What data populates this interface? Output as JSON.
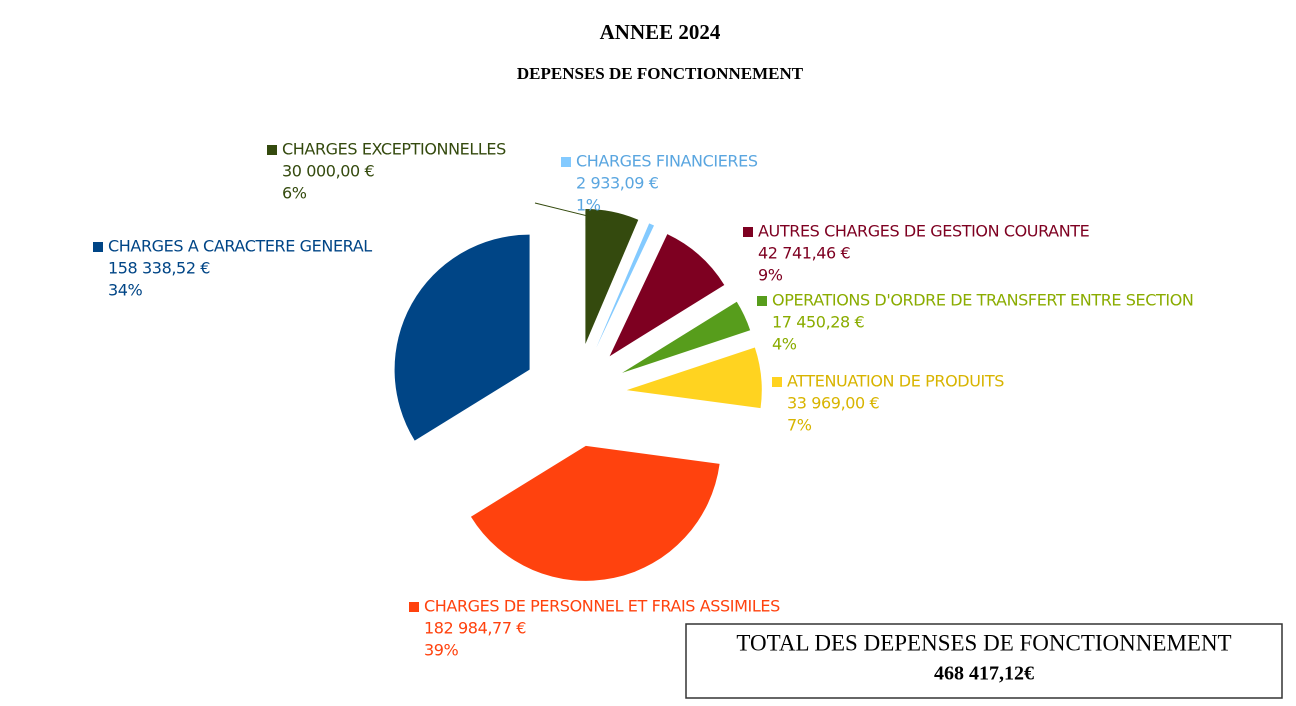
{
  "chart_data": {
    "type": "pie",
    "title": "ANNEE 2024",
    "subtitle": "DEPENSES DE FONCTIONNEMENT",
    "categories": [
      "CHARGES EXCEPTIONNELLES",
      "CHARGES FINANCIERES",
      "AUTRES CHARGES DE GESTION COURANTE",
      "OPERATIONS D'ORDRE DE TRANSFERT ENTRE SECTION",
      "ATTENUATION DE PRODUITS",
      "CHARGES DE PERSONNEL ET FRAIS ASSIMILES",
      "CHARGES A CARACTERE GENERAL"
    ],
    "values": [
      30000.0,
      2933.09,
      42741.46,
      17450.28,
      33969.0,
      182984.77,
      158338.52
    ],
    "value_labels": [
      "30 000,00 €",
      "2 933,09 €",
      "42 741,46 €",
      "17 450,28 €",
      "33 969,00 €",
      "182 984,77 €",
      "158 338,52 €"
    ],
    "percent_labels": [
      "6%",
      "1%",
      "9%",
      "4%",
      "7%",
      "39%",
      "34%"
    ],
    "colors": [
      "#344a0e",
      "#83caff",
      "#7e0021",
      "#579d1c",
      "#ffd320",
      "#ff420e",
      "#004586"
    ],
    "label_colors": [
      "#344a0e",
      "#5aa6e0",
      "#7e0021",
      "#8aac00",
      "#d8b400",
      "#ff420e",
      "#004586"
    ],
    "total_title": "TOTAL DES DEPENSES DE FONCTIONNEMENT",
    "total_label": "468 417,12€"
  }
}
